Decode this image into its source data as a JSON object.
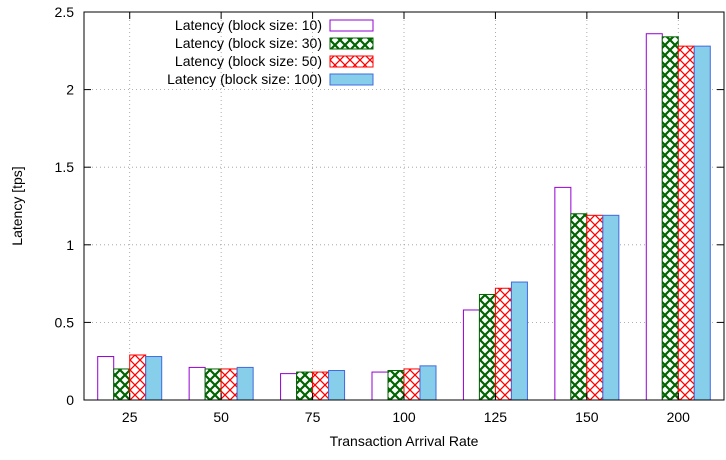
{
  "chart_data": {
    "type": "bar",
    "title": "",
    "xlabel": "Transaction Arrival Rate",
    "ylabel": "Latency [tps]",
    "categories": [
      "25",
      "50",
      "75",
      "100",
      "125",
      "150",
      "200"
    ],
    "ylim": [
      0,
      2.5
    ],
    "yticks": [
      "0",
      "0.5",
      "1",
      "1.5",
      "2",
      "2.5"
    ],
    "grid": true,
    "legend_position": "top-left",
    "series": [
      {
        "name": "Latency (block size: 10)",
        "values": [
          0.28,
          0.21,
          0.17,
          0.18,
          0.58,
          1.37,
          2.36
        ],
        "color": "#9400d3",
        "pattern": "empty"
      },
      {
        "name": "Latency (block size: 30)",
        "values": [
          0.2,
          0.2,
          0.18,
          0.19,
          0.68,
          1.2,
          2.34
        ],
        "color": "#006400",
        "pattern": "crosshatch"
      },
      {
        "name": "Latency (block size: 50)",
        "values": [
          0.29,
          0.2,
          0.18,
          0.2,
          0.72,
          1.19,
          2.28
        ],
        "color": "#ff0000",
        "pattern": "crosshatch"
      },
      {
        "name": "Latency (block size: 100)",
        "values": [
          0.28,
          0.21,
          0.19,
          0.22,
          0.76,
          1.19,
          2.28
        ],
        "color": "#87ceeb",
        "pattern": "solid",
        "edge": "#4169e1"
      }
    ]
  }
}
